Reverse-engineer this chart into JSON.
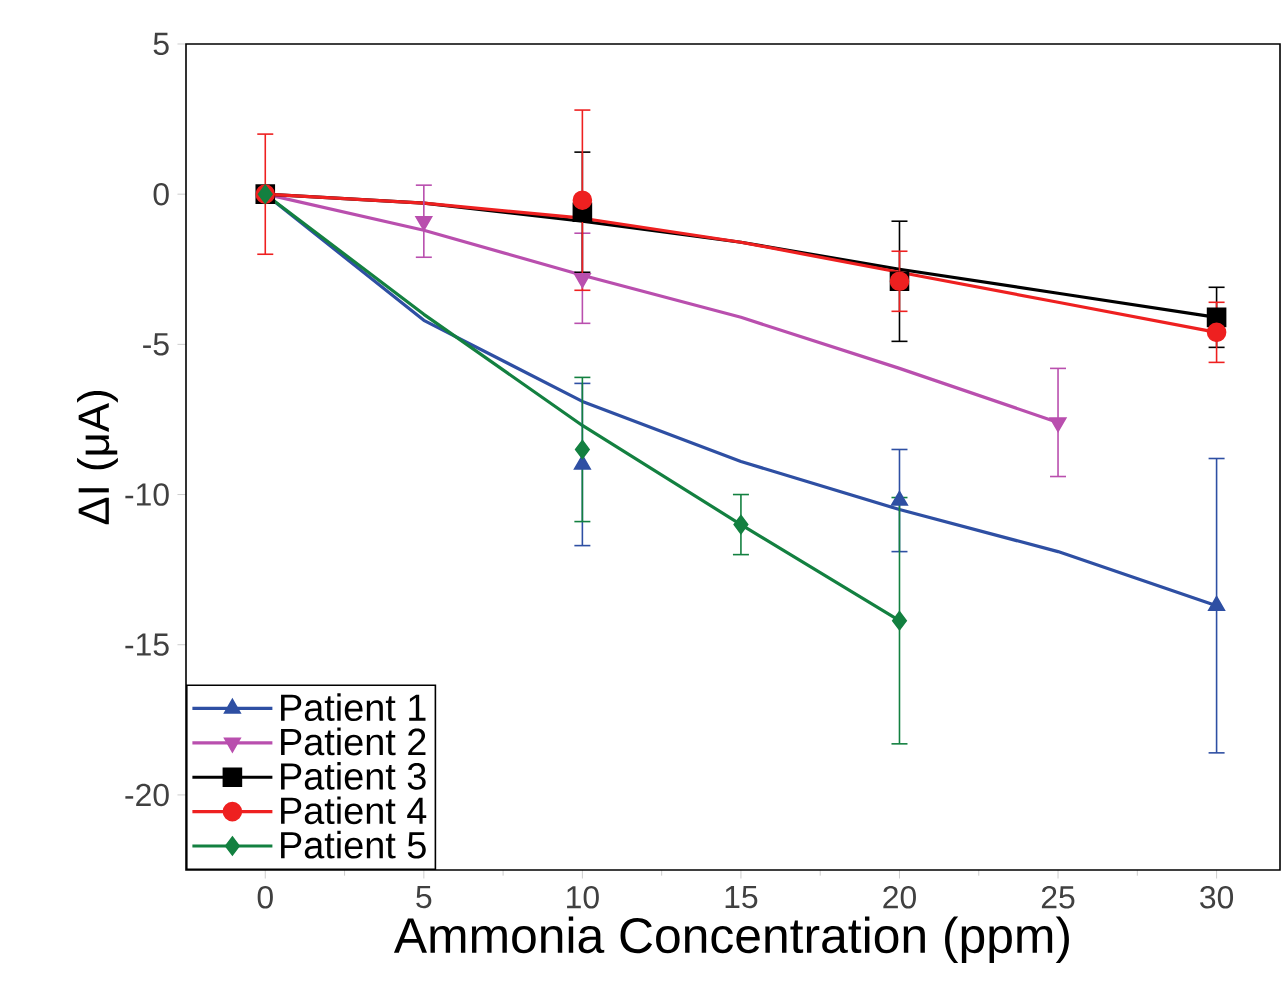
{
  "chart_data": {
    "type": "scatter",
    "xlabel": "Ammonia Concentration (ppm)",
    "ylabel": "ΔI (μA)",
    "xlim": [
      -2.5,
      32
    ],
    "ylim": [
      -22.5,
      5
    ],
    "xticks": [
      0,
      5,
      10,
      15,
      20,
      25,
      30
    ],
    "yticks": [
      -20,
      -15,
      -10,
      -5,
      0,
      5
    ],
    "grid": false,
    "legend": "bottom left",
    "series": [
      {
        "name": "Patient 1",
        "color": "#2e4fa3",
        "marker": "triangle",
        "x": [
          10,
          20,
          30
        ],
        "values": [
          -9.0,
          -10.2,
          -13.7
        ],
        "errors": [
          2.7,
          1.7,
          4.9
        ]
      },
      {
        "name": "Patient 2",
        "color": "#b94fae",
        "marker": "triangle-down",
        "x": [
          5,
          10,
          25
        ],
        "values": [
          -0.9,
          -2.8,
          -7.6
        ],
        "errors": [
          1.2,
          1.5,
          1.8
        ]
      },
      {
        "name": "Patient 3",
        "color": "#000000",
        "marker": "square",
        "x": [
          0,
          10,
          20,
          30
        ],
        "values": [
          0,
          -0.6,
          -2.9,
          -4.1
        ],
        "errors": [
          0,
          2.0,
          2.0,
          1.0
        ]
      },
      {
        "name": "Patient 4",
        "color": "#ee2020",
        "marker": "circle",
        "x": [
          0,
          10,
          20,
          30
        ],
        "values": [
          0,
          -0.2,
          -2.9,
          -4.6
        ],
        "errors": [
          2.0,
          3.0,
          1.0,
          1.0
        ]
      },
      {
        "name": "Patient 5",
        "color": "#138040",
        "marker": "diamond",
        "x": [
          0,
          10,
          15,
          20
        ],
        "values": [
          0,
          -8.5,
          -11.0,
          -14.2
        ],
        "errors": [
          0,
          2.4,
          1.0,
          4.1
        ]
      },
      {
        "type": "line",
        "color": "#2e4fa3",
        "x": [
          0,
          5,
          10,
          15,
          20,
          25,
          30
        ],
        "values": [
          0,
          -4.2,
          -6.9,
          -8.9,
          -10.5,
          -11.9,
          -13.7
        ]
      },
      {
        "type": "line",
        "color": "#b94fae",
        "x": [
          0,
          5,
          10,
          15,
          20,
          25
        ],
        "values": [
          0,
          -1.2,
          -2.7,
          -4.1,
          -5.8,
          -7.6
        ]
      },
      {
        "type": "line",
        "color": "#000000",
        "x": [
          0,
          5,
          10,
          15,
          20,
          25,
          30
        ],
        "values": [
          0,
          -0.3,
          -0.9,
          -1.6,
          -2.5,
          -3.3,
          -4.1
        ]
      },
      {
        "type": "line",
        "color": "#ee2020",
        "x": [
          0,
          5,
          10,
          15,
          20,
          25,
          30
        ],
        "values": [
          0,
          -0.3,
          -0.8,
          -1.6,
          -2.6,
          -3.6,
          -4.6
        ]
      },
      {
        "type": "line",
        "color": "#138040",
        "x": [
          0,
          5,
          10,
          15,
          20
        ],
        "values": [
          0,
          -4.0,
          -7.7,
          -11.0,
          -14.2
        ]
      }
    ]
  }
}
